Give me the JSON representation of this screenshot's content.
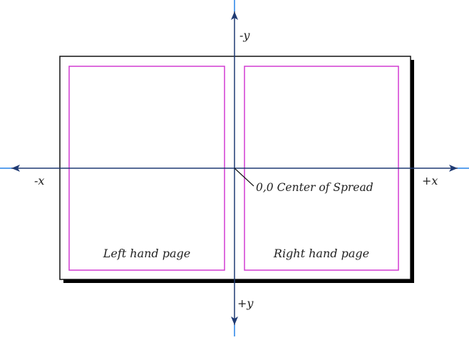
{
  "labels": {
    "neg_y": "-y",
    "pos_y": "+y",
    "neg_x": "-x",
    "pos_x": "+x",
    "origin": "0,0 Center of Spread",
    "left_page": "Left hand page",
    "right_page": "Right hand page"
  },
  "colors": {
    "axis": "#1f3a73",
    "axis_tip": "#4aa3ff",
    "page_border": "#111111",
    "margin_guides": "#d23bd2",
    "shadow": "#000000",
    "text": "#222222"
  }
}
